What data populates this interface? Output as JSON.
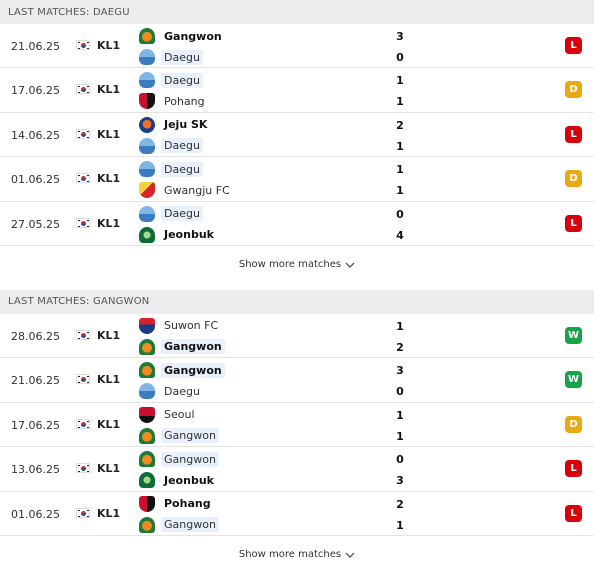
{
  "colors": {
    "loss": "#d8000c",
    "draw": "#e8a912",
    "win": "#16a34a"
  },
  "sections": [
    {
      "title": "LAST MATCHES: DAEGU",
      "show_more_label": "Show more matches",
      "matches": [
        {
          "date": "21.06.25",
          "league": "KL1",
          "home": {
            "name": "Gangwon",
            "crest": "gangwon-crest",
            "score": "3",
            "bold": true,
            "highlight": false
          },
          "away": {
            "name": "Daegu",
            "crest": "daegu-crest",
            "score": "0",
            "bold": false,
            "highlight": true
          },
          "result": "L",
          "result_color": "#d8000c"
        },
        {
          "date": "17.06.25",
          "league": "KL1",
          "home": {
            "name": "Daegu",
            "crest": "daegu-crest",
            "score": "1",
            "bold": false,
            "highlight": true
          },
          "away": {
            "name": "Pohang",
            "crest": "pohang-crest",
            "score": "1",
            "bold": false,
            "highlight": false
          },
          "result": "D",
          "result_color": "#e8a912"
        },
        {
          "date": "14.06.25",
          "league": "KL1",
          "home": {
            "name": "Jeju SK",
            "crest": "jeju-crest",
            "score": "2",
            "bold": true,
            "highlight": false
          },
          "away": {
            "name": "Daegu",
            "crest": "daegu-crest",
            "score": "1",
            "bold": false,
            "highlight": true
          },
          "result": "L",
          "result_color": "#d8000c"
        },
        {
          "date": "01.06.25",
          "league": "KL1",
          "home": {
            "name": "Daegu",
            "crest": "daegu-crest",
            "score": "1",
            "bold": false,
            "highlight": true
          },
          "away": {
            "name": "Gwangju FC",
            "crest": "gwangju-crest",
            "score": "1",
            "bold": false,
            "highlight": false
          },
          "result": "D",
          "result_color": "#e8a912"
        },
        {
          "date": "27.05.25",
          "league": "KL1",
          "home": {
            "name": "Daegu",
            "crest": "daegu-crest",
            "score": "0",
            "bold": false,
            "highlight": true
          },
          "away": {
            "name": "Jeonbuk",
            "crest": "jeonbuk-crest",
            "score": "4",
            "bold": true,
            "highlight": false
          },
          "result": "L",
          "result_color": "#d8000c"
        }
      ]
    },
    {
      "title": "LAST MATCHES: GANGWON",
      "show_more_label": "Show more matches",
      "matches": [
        {
          "date": "28.06.25",
          "league": "KL1",
          "home": {
            "name": "Suwon FC",
            "crest": "suwon-crest",
            "score": "1",
            "bold": false,
            "highlight": false
          },
          "away": {
            "name": "Gangwon",
            "crest": "gangwon-crest",
            "score": "2",
            "bold": true,
            "highlight": true
          },
          "result": "W",
          "result_color": "#16a34a"
        },
        {
          "date": "21.06.25",
          "league": "KL1",
          "home": {
            "name": "Gangwon",
            "crest": "gangwon-crest",
            "score": "3",
            "bold": true,
            "highlight": true
          },
          "away": {
            "name": "Daegu",
            "crest": "daegu-crest",
            "score": "0",
            "bold": false,
            "highlight": false
          },
          "result": "W",
          "result_color": "#16a34a"
        },
        {
          "date": "17.06.25",
          "league": "KL1",
          "home": {
            "name": "Seoul",
            "crest": "seoul-crest",
            "score": "1",
            "bold": false,
            "highlight": false
          },
          "away": {
            "name": "Gangwon",
            "crest": "gangwon-crest",
            "score": "1",
            "bold": false,
            "highlight": true
          },
          "result": "D",
          "result_color": "#e8a912"
        },
        {
          "date": "13.06.25",
          "league": "KL1",
          "home": {
            "name": "Gangwon",
            "crest": "gangwon-crest",
            "score": "0",
            "bold": false,
            "highlight": true
          },
          "away": {
            "name": "Jeonbuk",
            "crest": "jeonbuk-crest",
            "score": "3",
            "bold": true,
            "highlight": false
          },
          "result": "L",
          "result_color": "#d8000c"
        },
        {
          "date": "01.06.25",
          "league": "KL1",
          "home": {
            "name": "Pohang",
            "crest": "pohang-crest",
            "score": "2",
            "bold": true,
            "highlight": false
          },
          "away": {
            "name": "Gangwon",
            "crest": "gangwon-crest",
            "score": "1",
            "bold": false,
            "highlight": true
          },
          "result": "L",
          "result_color": "#d8000c"
        }
      ]
    }
  ]
}
